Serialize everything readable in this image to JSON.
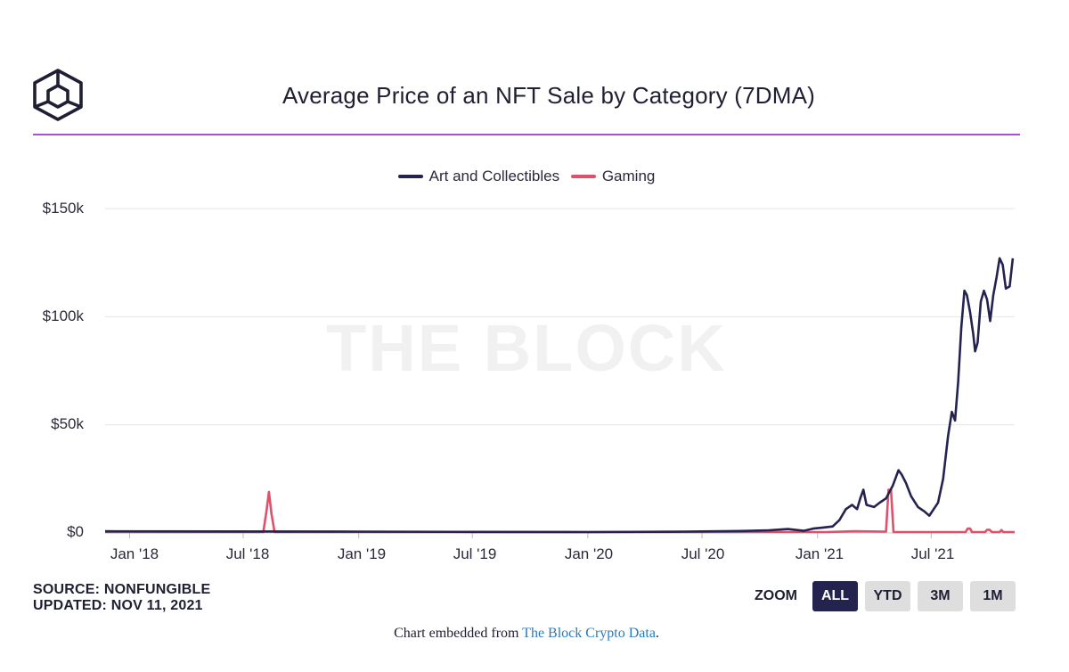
{
  "header": {
    "title": "Average Price of an NFT Sale by Category (7DMA)",
    "logo_icon": "the-block-cube-logo"
  },
  "colors": {
    "accent_rule": "#a855c8",
    "art": "#24234f",
    "gaming": "#e0506a",
    "active_button": "#24234f"
  },
  "watermark": "THE BLOCK",
  "chart_data": {
    "type": "line",
    "title": "Average Price of an NFT Sale by Category (7DMA)",
    "y_ticks": [
      "$0",
      "$50k",
      "$100k",
      "$150k"
    ],
    "y_tick_values": [
      0,
      50000,
      100000,
      150000
    ],
    "ylim": [
      0,
      150000
    ],
    "x_ticks": [
      "Jan '18",
      "Jul '18",
      "Jan '19",
      "Jul '19",
      "Jan '20",
      "Jul '20",
      "Jan '21",
      "Jul '21"
    ],
    "x_tick_dates": [
      "2018-01-01",
      "2018-07-01",
      "2019-01-01",
      "2019-07-01",
      "2020-01-01",
      "2020-07-01",
      "2021-01-01",
      "2021-07-01"
    ],
    "xlim": [
      "2017-11-23",
      "2021-11-11"
    ],
    "grid": true,
    "legend_position": "top-center",
    "series": [
      {
        "name": "Art and Collectibles",
        "color": "#24234f",
        "points": [
          [
            "2017-11-23",
            800
          ],
          [
            "2018-06-01",
            700
          ],
          [
            "2019-01-01",
            600
          ],
          [
            "2019-07-01",
            500
          ],
          [
            "2020-01-01",
            400
          ],
          [
            "2020-06-01",
            600
          ],
          [
            "2020-09-01",
            900
          ],
          [
            "2020-10-15",
            1200
          ],
          [
            "2020-11-15",
            1800
          ],
          [
            "2020-12-10",
            1000
          ],
          [
            "2020-12-25",
            2000
          ],
          [
            "2021-01-10",
            2500
          ],
          [
            "2021-01-25",
            3000
          ],
          [
            "2021-02-05",
            6000
          ],
          [
            "2021-02-15",
            11000
          ],
          [
            "2021-02-25",
            13000
          ],
          [
            "2021-03-05",
            11000
          ],
          [
            "2021-03-10",
            16000
          ],
          [
            "2021-03-15",
            20000
          ],
          [
            "2021-03-20",
            13000
          ],
          [
            "2021-04-01",
            12000
          ],
          [
            "2021-04-10",
            14000
          ],
          [
            "2021-04-20",
            16000
          ],
          [
            "2021-05-01",
            22000
          ],
          [
            "2021-05-10",
            29000
          ],
          [
            "2021-05-15",
            27000
          ],
          [
            "2021-05-22",
            23000
          ],
          [
            "2021-05-30",
            17000
          ],
          [
            "2021-06-10",
            12000
          ],
          [
            "2021-06-20",
            10000
          ],
          [
            "2021-06-28",
            8000
          ],
          [
            "2021-07-05",
            11000
          ],
          [
            "2021-07-12",
            14000
          ],
          [
            "2021-07-20",
            25000
          ],
          [
            "2021-07-28",
            45000
          ],
          [
            "2021-08-03",
            56000
          ],
          [
            "2021-08-08",
            52000
          ],
          [
            "2021-08-13",
            70000
          ],
          [
            "2021-08-18",
            95000
          ],
          [
            "2021-08-23",
            112000
          ],
          [
            "2021-08-27",
            110000
          ],
          [
            "2021-09-01",
            102000
          ],
          [
            "2021-09-06",
            92000
          ],
          [
            "2021-09-09",
            84000
          ],
          [
            "2021-09-13",
            88000
          ],
          [
            "2021-09-18",
            107000
          ],
          [
            "2021-09-23",
            112000
          ],
          [
            "2021-09-28",
            108000
          ],
          [
            "2021-10-03",
            98000
          ],
          [
            "2021-10-08",
            110000
          ],
          [
            "2021-10-13",
            118000
          ],
          [
            "2021-10-18",
            127000
          ],
          [
            "2021-10-23",
            124000
          ],
          [
            "2021-10-28",
            113000
          ],
          [
            "2021-11-03",
            114000
          ],
          [
            "2021-11-08",
            127000
          ]
        ]
      },
      {
        "name": "Gaming",
        "color": "#e0506a",
        "points": [
          [
            "2017-11-23",
            400
          ],
          [
            "2018-08-02",
            400
          ],
          [
            "2018-08-07",
            10000
          ],
          [
            "2018-08-11",
            19000
          ],
          [
            "2018-08-15",
            9000
          ],
          [
            "2018-08-20",
            400
          ],
          [
            "2019-06-01",
            400
          ],
          [
            "2020-06-01",
            400
          ],
          [
            "2021-01-15",
            400
          ],
          [
            "2021-03-01",
            800
          ],
          [
            "2021-04-20",
            600
          ],
          [
            "2021-04-24",
            20000
          ],
          [
            "2021-04-28",
            20000
          ],
          [
            "2021-05-02",
            400
          ],
          [
            "2021-08-25",
            400
          ],
          [
            "2021-08-28",
            2000
          ],
          [
            "2021-09-01",
            2000
          ],
          [
            "2021-09-04",
            400
          ],
          [
            "2021-09-25",
            400
          ],
          [
            "2021-09-28",
            1500
          ],
          [
            "2021-10-02",
            1500
          ],
          [
            "2021-10-06",
            400
          ],
          [
            "2021-10-18",
            400
          ],
          [
            "2021-10-21",
            1300
          ],
          [
            "2021-10-24",
            400
          ],
          [
            "2021-11-11",
            400
          ]
        ]
      }
    ]
  },
  "footer_meta": {
    "source": "SOURCE: NONFUNGIBLE",
    "updated": "UPDATED: NOV 11, 2021"
  },
  "zoom": {
    "label": "ZOOM",
    "buttons": [
      "ALL",
      "YTD",
      "3M",
      "1M"
    ],
    "active": "ALL"
  },
  "embed": {
    "prefix": "Chart embedded from ",
    "link_text": "The Block Crypto Data",
    "suffix": "."
  }
}
